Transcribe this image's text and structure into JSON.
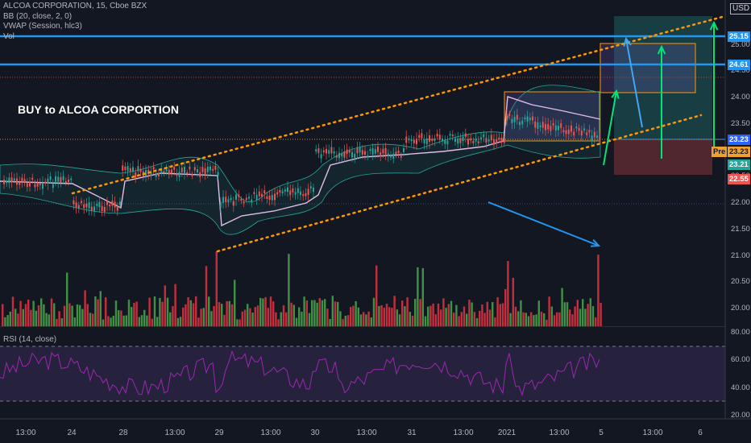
{
  "legend": {
    "symbol": "ALCOA CORPORATION, 15, Cboe BZX",
    "bb": "BB (20, close, 2, 0)",
    "vwap": "VWAP (Session, hlc3)",
    "vol": "Vol"
  },
  "rsi_legend": "RSI (14, close)",
  "annotation": "BUY to ALCOA CORPORTION",
  "currency": "USD",
  "price_axis": [
    "25.00",
    "24.50",
    "24.00",
    "23.50",
    "23.00",
    "22.50",
    "22.00",
    "21.50",
    "21.00",
    "20.50",
    "20.00"
  ],
  "rsi_axis": [
    "80.00",
    "60.00",
    "40.00",
    "20.00"
  ],
  "price_tags": [
    {
      "label": "25.15",
      "bg": "#2196f3",
      "fg": "#ffffff"
    },
    {
      "label": "24.61",
      "bg": "#2196f3",
      "fg": "#ffffff"
    },
    {
      "label": "23.23",
      "bg": "#2962ff",
      "fg": "#ffffff"
    },
    {
      "label": "23.23",
      "bg": "#f0a030",
      "fg": "#131722"
    },
    {
      "label": "23.21",
      "bg": "#26a69a",
      "fg": "#ffffff"
    },
    {
      "label": "22.55",
      "bg": "#ef5350",
      "fg": "#ffffff"
    }
  ],
  "premarket_badge": "Pre",
  "time_axis": [
    "13:00",
    "24",
    "28",
    "13:00",
    "29",
    "13:00",
    "30",
    "13:00",
    "31",
    "13:00",
    "2021",
    "13:00",
    "5",
    "13:00",
    "6"
  ],
  "colors": {
    "up": "#26a69a",
    "down": "#ef5350",
    "vol_up": "#4caf50",
    "vol_down": "#f23645",
    "channel": "#ff9800",
    "level": "#2196f3",
    "rsi": "#9c27b0",
    "bb": "#26a69a",
    "vwap": "#e1bee7"
  }
}
